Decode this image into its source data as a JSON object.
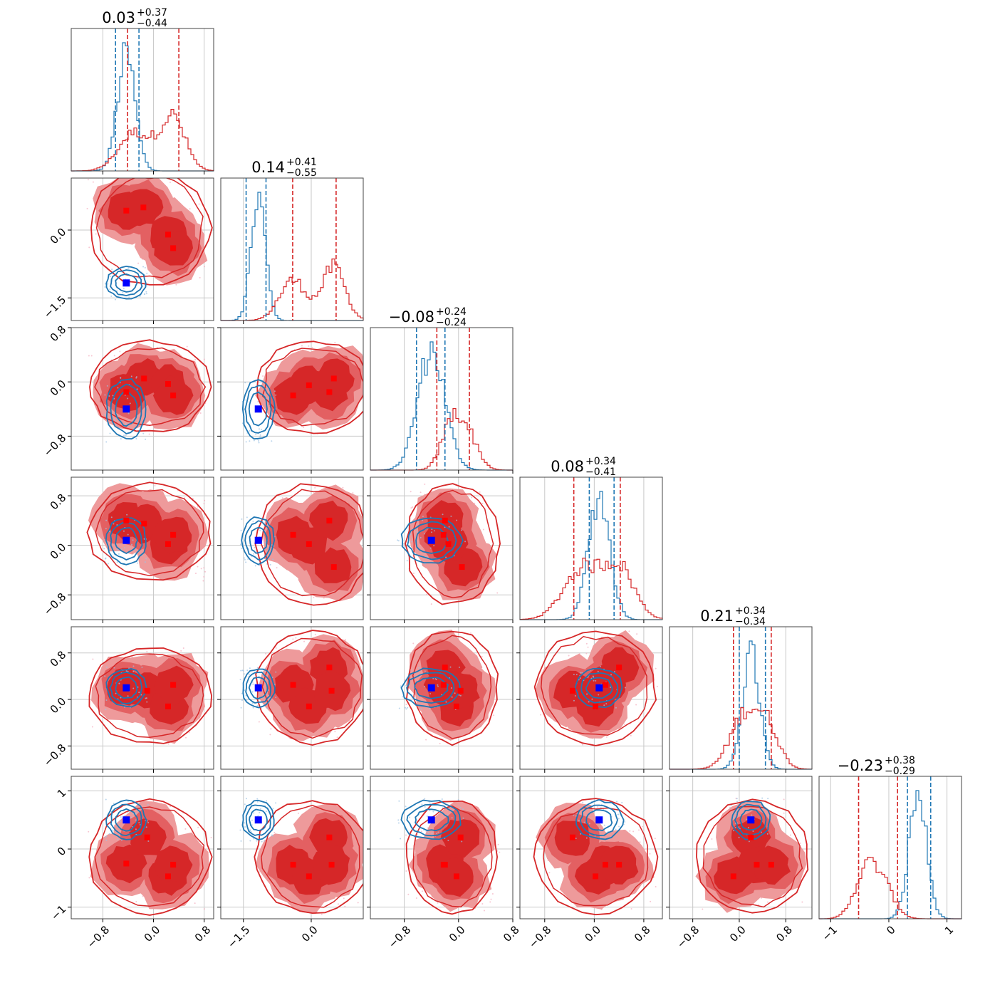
{
  "chart_data": {
    "type": "corner",
    "n_params": 6,
    "titles": [
      {
        "value": "0.03",
        "plus": "+0.37",
        "minus": "−0.44"
      },
      {
        "value": "0.14",
        "plus": "+0.41",
        "minus": "−0.55"
      },
      {
        "value": "−0.08",
        "plus": "+0.24",
        "minus": "−0.24"
      },
      {
        "value": "0.08",
        "plus": "+0.34",
        "minus": "−0.41"
      },
      {
        "value": "0.21",
        "plus": "+0.34",
        "minus": "−0.34"
      },
      {
        "value": "−0.23",
        "plus": "+0.38",
        "minus": "−0.29"
      }
    ],
    "ranges": [
      [
        -1.3,
        0.95
      ],
      [
        -2.0,
        1.15
      ],
      [
        -1.3,
        0.8
      ],
      [
        -1.2,
        1.1
      ],
      [
        -1.2,
        1.25
      ],
      [
        -1.2,
        1.25
      ]
    ],
    "ticks": [
      {
        "values": [
          -0.8,
          0.0,
          0.8
        ],
        "labels": [
          "−0.8",
          "0.0",
          "0.8"
        ]
      },
      {
        "values": [
          -1.5,
          0.0
        ],
        "labels": [
          "−1.5",
          "0.0"
        ]
      },
      {
        "values": [
          -0.8,
          0.0,
          0.8
        ],
        "labels": [
          "−0.8",
          "0.0",
          "0.8"
        ]
      },
      {
        "values": [
          -0.8,
          0.0,
          0.8
        ],
        "labels": [
          "−0.8",
          "0.0",
          "0.8"
        ]
      },
      {
        "values": [
          -0.8,
          0.0,
          0.8
        ],
        "labels": [
          "−0.8",
          "0.0",
          "0.8"
        ]
      },
      {
        "values": [
          -1,
          0,
          1
        ],
        "labels": [
          "−1",
          "0",
          "1"
        ]
      }
    ],
    "series": [
      {
        "color": "#1f77b4",
        "role": "blue-contours"
      },
      {
        "color": "#d62728",
        "role": "red-filled-contours"
      }
    ],
    "blue_1d": [
      {
        "center": -0.43,
        "sigma": 0.14,
        "q_lo": -0.6,
        "q_hi": -0.23
      },
      {
        "center": -1.17,
        "sigma": 0.16,
        "q_lo": -1.44,
        "q_hi": -1.0
      },
      {
        "center": -0.4,
        "sigma": 0.2,
        "q_lo": -0.62,
        "q_hi": -0.2
      },
      {
        "center": 0.08,
        "sigma": 0.17,
        "q_lo": -0.08,
        "q_hi": 0.32
      },
      {
        "center": 0.2,
        "sigma": 0.15,
        "q_lo": 0.0,
        "q_hi": 0.45
      },
      {
        "center": 0.5,
        "sigma": 0.15,
        "q_lo": 0.32,
        "q_hi": 0.72
      }
    ],
    "red_1d": [
      {
        "modes": [
          {
            "c": -0.3,
            "s": 0.25,
            "w": 0.5
          },
          {
            "c": 0.3,
            "s": 0.2,
            "w": 0.7
          }
        ],
        "q_lo": -0.41,
        "q_hi": 0.4
      },
      {
        "modes": [
          {
            "c": -0.4,
            "s": 0.3,
            "w": 0.6
          },
          {
            "c": 0.5,
            "s": 0.25,
            "w": 0.8
          }
        ],
        "q_lo": -0.41,
        "q_hi": 0.55
      },
      {
        "modes": [
          {
            "c": -0.1,
            "s": 0.15,
            "w": 0.6
          },
          {
            "c": 0.15,
            "s": 0.15,
            "w": 0.4
          }
        ],
        "q_lo": -0.32,
        "q_hi": 0.16
      },
      {
        "modes": [
          {
            "c": -0.2,
            "s": 0.3,
            "w": 0.6
          },
          {
            "c": 0.4,
            "s": 0.25,
            "w": 0.6
          }
        ],
        "q_lo": -0.33,
        "q_hi": 0.42
      },
      {
        "modes": [
          {
            "c": 0.1,
            "s": 0.25,
            "w": 0.6
          },
          {
            "c": 0.5,
            "s": 0.2,
            "w": 0.4
          }
        ],
        "q_lo": -0.1,
        "q_hi": 0.55
      },
      {
        "modes": [
          {
            "c": -0.4,
            "s": 0.2,
            "w": 0.6
          },
          {
            "c": -0.1,
            "s": 0.2,
            "w": 0.4
          }
        ],
        "q_lo": -0.52,
        "q_hi": 0.15
      }
    ],
    "blue_points": [
      {
        "row": 1,
        "col": 0,
        "x": -0.43,
        "y": -1.17
      },
      {
        "row": 2,
        "col": 0,
        "x": -0.43,
        "y": -0.4
      },
      {
        "row": 2,
        "col": 1,
        "x": -1.17,
        "y": -0.4
      },
      {
        "row": 3,
        "col": 0,
        "x": -0.43,
        "y": 0.08
      },
      {
        "row": 3,
        "col": 1,
        "x": -1.17,
        "y": 0.08
      },
      {
        "row": 3,
        "col": 2,
        "x": -0.4,
        "y": 0.08
      },
      {
        "row": 4,
        "col": 0,
        "x": -0.43,
        "y": 0.2
      },
      {
        "row": 4,
        "col": 1,
        "x": -1.17,
        "y": 0.2
      },
      {
        "row": 4,
        "col": 2,
        "x": -0.4,
        "y": 0.2
      },
      {
        "row": 4,
        "col": 3,
        "x": 0.08,
        "y": 0.2
      },
      {
        "row": 5,
        "col": 0,
        "x": -0.43,
        "y": 0.5
      },
      {
        "row": 5,
        "col": 1,
        "x": -1.17,
        "y": 0.5
      },
      {
        "row": 5,
        "col": 2,
        "x": -0.4,
        "y": 0.5
      },
      {
        "row": 5,
        "col": 3,
        "x": 0.08,
        "y": 0.5
      },
      {
        "row": 5,
        "col": 4,
        "x": 0.2,
        "y": 0.5
      }
    ],
    "red_points": [
      {
        "row": 1,
        "col": 0,
        "pts": [
          [
            -0.43,
            0.43
          ],
          [
            -0.16,
            0.5
          ],
          [
            0.23,
            -0.1
          ],
          [
            0.31,
            -0.4
          ]
        ]
      },
      {
        "row": 2,
        "col": 0,
        "pts": [
          [
            -0.43,
            -0.15
          ],
          [
            -0.15,
            0.05
          ],
          [
            0.23,
            -0.03
          ],
          [
            0.31,
            -0.2
          ]
        ]
      },
      {
        "row": 2,
        "col": 1,
        "pts": [
          [
            -0.4,
            -0.2
          ],
          [
            -0.05,
            -0.05
          ],
          [
            0.4,
            -0.15
          ],
          [
            0.5,
            0.05
          ]
        ]
      },
      {
        "row": 3,
        "col": 0,
        "pts": [
          [
            -0.43,
            0.4
          ],
          [
            -0.15,
            0.35
          ],
          [
            0.23,
            0.02
          ],
          [
            0.31,
            0.17
          ]
        ]
      },
      {
        "row": 3,
        "col": 1,
        "pts": [
          [
            -0.4,
            0.17
          ],
          [
            -0.05,
            0.02
          ],
          [
            0.4,
            0.4
          ],
          [
            0.5,
            -0.35
          ]
        ]
      },
      {
        "row": 3,
        "col": 2,
        "pts": [
          [
            -0.2,
            0.4
          ],
          [
            -0.22,
            0.17
          ],
          [
            0.05,
            -0.35
          ],
          [
            -0.15,
            0.02
          ]
        ]
      },
      {
        "row": 4,
        "col": 0,
        "pts": [
          [
            -0.43,
            0.2
          ],
          [
            -0.1,
            0.15
          ],
          [
            0.23,
            -0.12
          ],
          [
            0.31,
            0.25
          ]
        ]
      },
      {
        "row": 4,
        "col": 1,
        "pts": [
          [
            -0.4,
            0.25
          ],
          [
            -0.05,
            -0.12
          ],
          [
            0.4,
            0.55
          ],
          [
            0.45,
            0.15
          ]
        ]
      },
      {
        "row": 4,
        "col": 2,
        "pts": [
          [
            -0.2,
            0.55
          ],
          [
            -0.22,
            0.25
          ],
          [
            -0.03,
            -0.12
          ],
          [
            0.03,
            0.15
          ]
        ]
      },
      {
        "row": 4,
        "col": 3,
        "pts": [
          [
            -0.35,
            0.15
          ],
          [
            0.02,
            -0.12
          ],
          [
            0.18,
            0.25
          ],
          [
            0.4,
            0.55
          ]
        ]
      },
      {
        "row": 5,
        "col": 0,
        "pts": [
          [
            -0.43,
            -0.25
          ],
          [
            -0.1,
            0.2
          ],
          [
            0.23,
            -0.47
          ],
          [
            0.31,
            -0.27
          ]
        ]
      },
      {
        "row": 5,
        "col": 1,
        "pts": [
          [
            -0.4,
            -0.27
          ],
          [
            -0.05,
            -0.47
          ],
          [
            0.4,
            0.2
          ],
          [
            0.45,
            -0.27
          ]
        ]
      },
      {
        "row": 5,
        "col": 2,
        "pts": [
          [
            -0.2,
            -0.27
          ],
          [
            -0.22,
            -0.27
          ],
          [
            -0.03,
            -0.47
          ],
          [
            0.03,
            0.2
          ]
        ]
      },
      {
        "row": 5,
        "col": 3,
        "pts": [
          [
            -0.35,
            0.2
          ],
          [
            0.02,
            -0.47
          ],
          [
            0.18,
            -0.27
          ],
          [
            0.4,
            -0.27
          ]
        ]
      },
      {
        "row": 5,
        "col": 4,
        "pts": [
          [
            -0.1,
            -0.47
          ],
          [
            0.2,
            0.2
          ],
          [
            0.3,
            -0.27
          ],
          [
            0.55,
            -0.27
          ]
        ]
      }
    ]
  }
}
